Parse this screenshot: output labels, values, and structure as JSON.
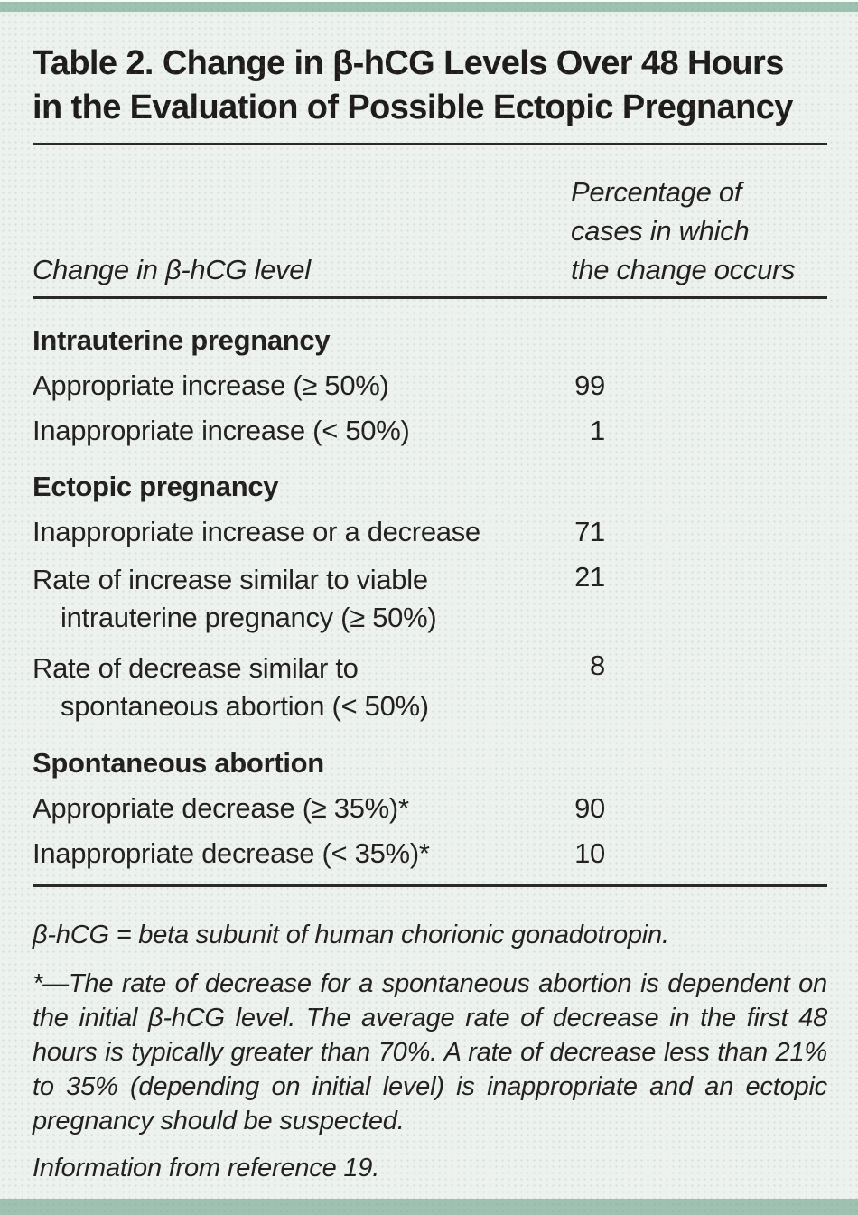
{
  "colors": {
    "background": "#edf2ee",
    "band": "#9fc1b1",
    "text": "#231f20",
    "rule": "#2b2829"
  },
  "title": {
    "line1": "Table 2. Change in β-hCG Levels Over 48 Hours",
    "line2": "in the Evaluation of Possible Ectopic Pregnancy"
  },
  "columns": {
    "change_header": "Change in β-hCG level",
    "percentage_header_line1": "Percentage of",
    "percentage_header_line2": "cases in which",
    "percentage_header_line3": "the change occurs"
  },
  "sections": [
    {
      "heading": "Intrauterine pregnancy",
      "rows": [
        {
          "label": "Appropriate increase (≥ 50%)",
          "value": "99"
        },
        {
          "label": "Inappropriate increase (< 50%)",
          "value": "1"
        }
      ]
    },
    {
      "heading": "Ectopic pregnancy",
      "rows": [
        {
          "label": "Inappropriate increase or a decrease",
          "value": "71"
        },
        {
          "label": "Rate of increase similar to viable",
          "label_line2": "intrauterine pregnancy (≥ 50%)",
          "value": "21"
        },
        {
          "label": "Rate of decrease similar to",
          "label_line2": "spontaneous abortion (< 50%)",
          "value": "8"
        }
      ]
    },
    {
      "heading": "Spontaneous abortion",
      "rows": [
        {
          "label": "Appropriate decrease (≥ 35%)*",
          "value": "90"
        },
        {
          "label": "Inappropriate decrease (< 35%)*",
          "value": "10"
        }
      ]
    }
  ],
  "footnotes": {
    "abbreviation": "β-hCG = beta subunit of human chorionic gonadotropin.",
    "asterisk_note": "*—The rate of decrease for a spontaneous abortion is dependent on the initial β-hCG level. The average rate of decrease in the first 48 hours is typically greater than 70%. A rate of decrease less than 21% to 35% (depending on initial level) is inappropriate and an ectopic pregnancy should be suspected.",
    "source": "Information from reference 19."
  }
}
